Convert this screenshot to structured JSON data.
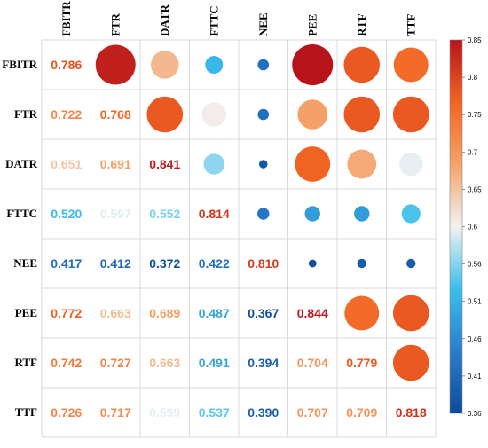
{
  "chart_data": {
    "type": "heatmap",
    "variables": [
      "FBITR",
      "FTR",
      "DATR",
      "FTTC",
      "NEE",
      "PEE",
      "RTF",
      "TTF"
    ],
    "matrix": [
      [
        0.786,
        0.836,
        0.665,
        0.515,
        0.42,
        0.85,
        0.78,
        0.76
      ],
      [
        0.722,
        0.768,
        0.78,
        0.61,
        0.42,
        0.69,
        0.78,
        0.78
      ],
      [
        0.651,
        0.691,
        0.841,
        0.56,
        0.38,
        0.77,
        0.68,
        0.6
      ],
      [
        0.52,
        0.597,
        0.552,
        0.814,
        0.43,
        0.48,
        0.48,
        0.53
      ],
      [
        0.417,
        0.412,
        0.372,
        0.422,
        0.81,
        0.37,
        0.39,
        0.39
      ],
      [
        0.772,
        0.663,
        0.689,
        0.487,
        0.367,
        0.844,
        0.76,
        0.78
      ],
      [
        0.742,
        0.727,
        0.663,
        0.491,
        0.394,
        0.704,
        0.779,
        0.78
      ],
      [
        0.726,
        0.717,
        0.599,
        0.537,
        0.39,
        0.707,
        0.709,
        0.818
      ]
    ],
    "lower_labels": [
      [
        "0.786"
      ],
      [
        "0.722",
        "0.768"
      ],
      [
        "0.651",
        "0.691",
        "0.841"
      ],
      [
        "0.520",
        "0.597",
        "0.552",
        "0.814"
      ],
      [
        "0.417",
        "0.412",
        "0.372",
        "0.422",
        "0.810"
      ],
      [
        "0.772",
        "0.663",
        "0.689",
        "0.487",
        "0.367",
        "0.844"
      ],
      [
        "0.742",
        "0.727",
        "0.663",
        "0.491",
        "0.394",
        "0.704",
        "0.779"
      ],
      [
        "0.726",
        "0.717",
        "0.599",
        "0.537",
        "0.390",
        "0.707",
        "0.709",
        "0.818"
      ]
    ],
    "colorbar": {
      "range": [
        0.36,
        0.85
      ],
      "ticks": [
        "0.85",
        "0.8",
        "0.75",
        "0.7",
        "0.65",
        "0.6",
        "0.56",
        "0.51",
        "0.46",
        "0.41",
        "0.36"
      ],
      "colors": [
        "#0d4a9a",
        "#2b7dcc",
        "#3bbfeb",
        "#f2f2f2",
        "#f4a36b",
        "#f26522",
        "#b7131b"
      ]
    },
    "title": "",
    "xlabel": "",
    "ylabel": ""
  }
}
